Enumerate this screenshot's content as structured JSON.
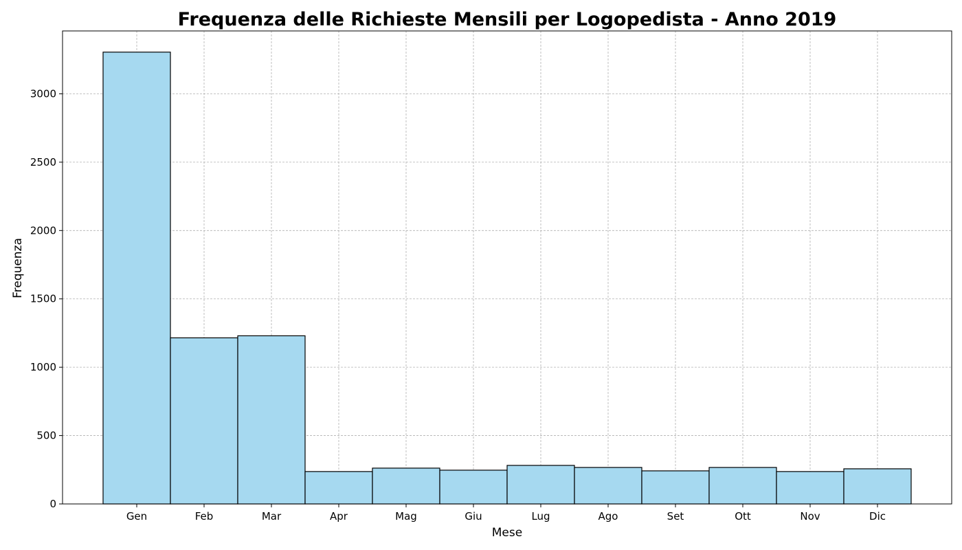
{
  "chart_data": {
    "type": "bar",
    "title": "Frequenza delle Richieste Mensili per Logopedista - Anno 2019",
    "xlabel": "Mese",
    "ylabel": "Frequenza",
    "categories": [
      "Gen",
      "Feb",
      "Mar",
      "Apr",
      "Mag",
      "Giu",
      "Lug",
      "Ago",
      "Set",
      "Ott",
      "Nov",
      "Dic"
    ],
    "values": [
      3305,
      1215,
      1230,
      237,
      262,
      247,
      282,
      267,
      242,
      267,
      237,
      257
    ],
    "ylim": [
      0,
      3460
    ],
    "yticks": [
      0,
      500,
      1000,
      1500,
      2000,
      2500,
      3000
    ],
    "grid": true,
    "bar_color": "#a6d9f0",
    "edge_color": "#000000"
  }
}
